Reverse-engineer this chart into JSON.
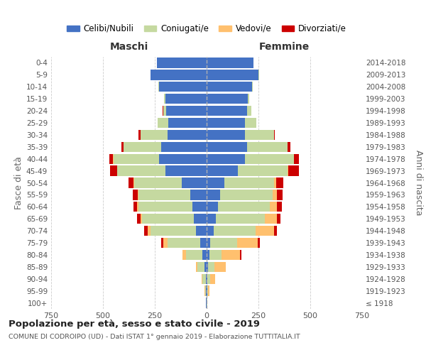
{
  "age_groups": [
    "100+",
    "95-99",
    "90-94",
    "85-89",
    "80-84",
    "75-79",
    "70-74",
    "65-69",
    "60-64",
    "55-59",
    "50-54",
    "45-49",
    "40-44",
    "35-39",
    "30-34",
    "25-29",
    "20-24",
    "15-19",
    "10-14",
    "5-9",
    "0-4"
  ],
  "birth_years": [
    "≤ 1918",
    "1919-1923",
    "1924-1928",
    "1929-1933",
    "1934-1938",
    "1939-1943",
    "1944-1948",
    "1949-1953",
    "1954-1958",
    "1959-1963",
    "1964-1968",
    "1969-1973",
    "1974-1978",
    "1979-1983",
    "1984-1988",
    "1989-1993",
    "1994-1998",
    "1999-2003",
    "2004-2008",
    "2009-2013",
    "2014-2018"
  ],
  "male_celibi": [
    2,
    3,
    5,
    10,
    20,
    30,
    50,
    60,
    70,
    80,
    120,
    200,
    230,
    220,
    190,
    185,
    195,
    200,
    230,
    270,
    240
  ],
  "male_coniugati": [
    1,
    5,
    15,
    35,
    80,
    160,
    220,
    250,
    260,
    250,
    230,
    230,
    220,
    180,
    130,
    50,
    15,
    5,
    2,
    2,
    1
  ],
  "male_vedovi": [
    0,
    1,
    3,
    8,
    15,
    20,
    15,
    10,
    5,
    3,
    2,
    1,
    1,
    0,
    0,
    1,
    0,
    0,
    0,
    0,
    0
  ],
  "male_divorziati": [
    0,
    0,
    0,
    0,
    3,
    10,
    15,
    15,
    18,
    22,
    25,
    35,
    18,
    12,
    8,
    2,
    1,
    0,
    0,
    0,
    0
  ],
  "female_celibi": [
    1,
    2,
    4,
    8,
    12,
    18,
    35,
    45,
    55,
    65,
    85,
    150,
    185,
    195,
    185,
    185,
    195,
    200,
    220,
    250,
    225
  ],
  "female_coniugati": [
    1,
    4,
    12,
    28,
    60,
    130,
    200,
    235,
    250,
    255,
    240,
    240,
    235,
    195,
    140,
    55,
    20,
    5,
    2,
    2,
    1
  ],
  "female_vedovi": [
    2,
    8,
    25,
    55,
    90,
    100,
    90,
    60,
    35,
    18,
    10,
    5,
    2,
    1,
    0,
    0,
    0,
    0,
    0,
    0,
    0
  ],
  "female_divorziati": [
    0,
    0,
    1,
    2,
    5,
    8,
    15,
    15,
    22,
    28,
    35,
    50,
    22,
    12,
    5,
    1,
    0,
    0,
    0,
    0,
    0
  ],
  "color_celibi": "#4472c4",
  "color_coniugati": "#c5d9a0",
  "color_vedovi": "#ffc06e",
  "color_divorziati": "#cc0000",
  "title": "Popolazione per età, sesso e stato civile - 2019",
  "subtitle": "COMUNE DI CODROIPO (UD) - Dati ISTAT 1° gennaio 2019 - Elaborazione TUTTITALIA.IT",
  "xlabel_maschi": "Maschi",
  "xlabel_femmine": "Femmine",
  "ylabel_left": "Fasce di età",
  "ylabel_right": "Anni di nascita",
  "xlim": 750,
  "background_color": "#ffffff",
  "grid_color": "#cccccc"
}
